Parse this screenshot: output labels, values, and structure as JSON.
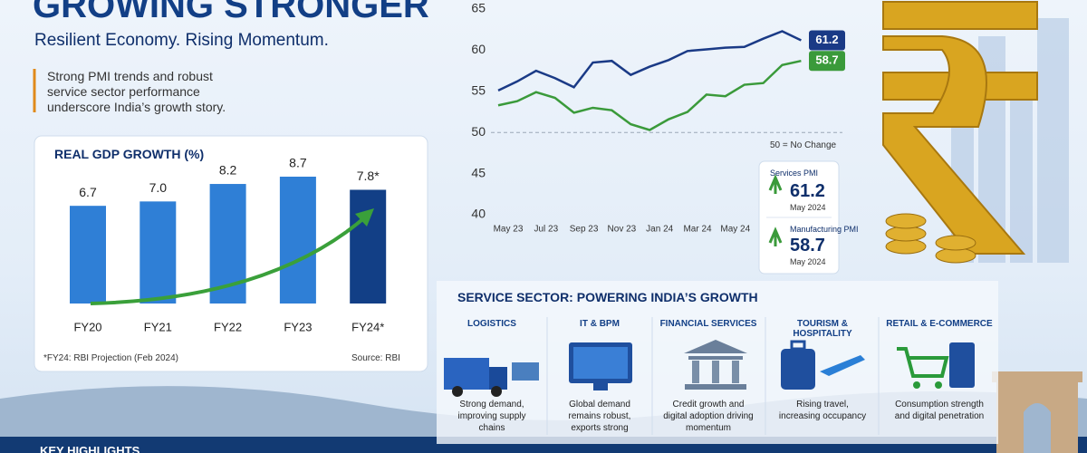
{
  "header": {
    "title": "GROWING STRONGER",
    "subtitle": "Resilient Economy. Rising Momentum.",
    "lead": "Strong PMI trends and robust service sector performance underscore India’s growth story."
  },
  "chart_data": [
    {
      "type": "bar",
      "title": "REAL GDP GROWTH (%)",
      "categories": [
        "FY20",
        "FY21",
        "FY22",
        "FY23",
        "FY24*"
      ],
      "values": [
        6.7,
        7.0,
        8.2,
        8.7,
        7.8
      ],
      "value_labels": [
        "6.7",
        "7.0",
        "8.2",
        "8.7",
        "7.8*"
      ],
      "colors": [
        "#2f7fd6",
        "#2f7fd6",
        "#2f7fd6",
        "#2f7fd6",
        "#123f86"
      ],
      "note": "*FY24: RBI Projection (Feb 2024)",
      "source": "Source: RBI"
    },
    {
      "type": "line",
      "categories": [
        "May 23",
        null,
        "Jul 23",
        null,
        "Sep 23",
        null,
        "Nov 23",
        null,
        "Jan 24",
        null,
        "Mar 24",
        null,
        "May 24",
        null,
        null,
        null,
        null
      ],
      "series": [
        {
          "name": "Services PMI",
          "color": "#1a3a86",
          "values": [
            55.1,
            56.2,
            57.5,
            56.6,
            55.5,
            58.5,
            58.7,
            57.0,
            58.0,
            58.8,
            59.9,
            60.1,
            60.3,
            60.4,
            61.4,
            62.3,
            61.2
          ]
        },
        {
          "name": "Manufacturing PMI",
          "color": "#3a9a3a",
          "values": [
            53.3,
            53.8,
            54.9,
            54.2,
            52.4,
            53.0,
            52.7,
            51.0,
            50.3,
            51.6,
            52.5,
            54.6,
            54.4,
            55.8,
            56.0,
            58.2,
            58.7
          ]
        }
      ],
      "ylim": [
        40,
        65
      ],
      "yticks": [
        40,
        45,
        50,
        55,
        60,
        65
      ],
      "reference": {
        "value": 50,
        "label": "50 = No Change"
      }
    }
  ],
  "pmi_cards": [
    {
      "value": "61.2",
      "date": "May 2024"
    },
    {
      "value": "58.7",
      "date": "May 2024"
    }
  ],
  "services": {
    "title": "SERVICE SECTOR: POWERING INDIA’S GROWTH",
    "items": [
      {
        "name": "LOGISTICS",
        "text": "Strong demand, improving supply chains"
      },
      {
        "name": "IT & BPM",
        "text": "Global demand remains robust, exports strong"
      },
      {
        "name": "FINANCIAL SERVICES",
        "text": "Credit growth and digital adoption driving momentum"
      },
      {
        "name": "TOURISM & HOSPITALITY",
        "text": "Rising travel, increasing occupancy"
      },
      {
        "name": "RETAIL & E-COMMERCE",
        "text": "Consumption strength and digital penetration"
      }
    ]
  },
  "footer": "KEY HIGHLIGHTS"
}
